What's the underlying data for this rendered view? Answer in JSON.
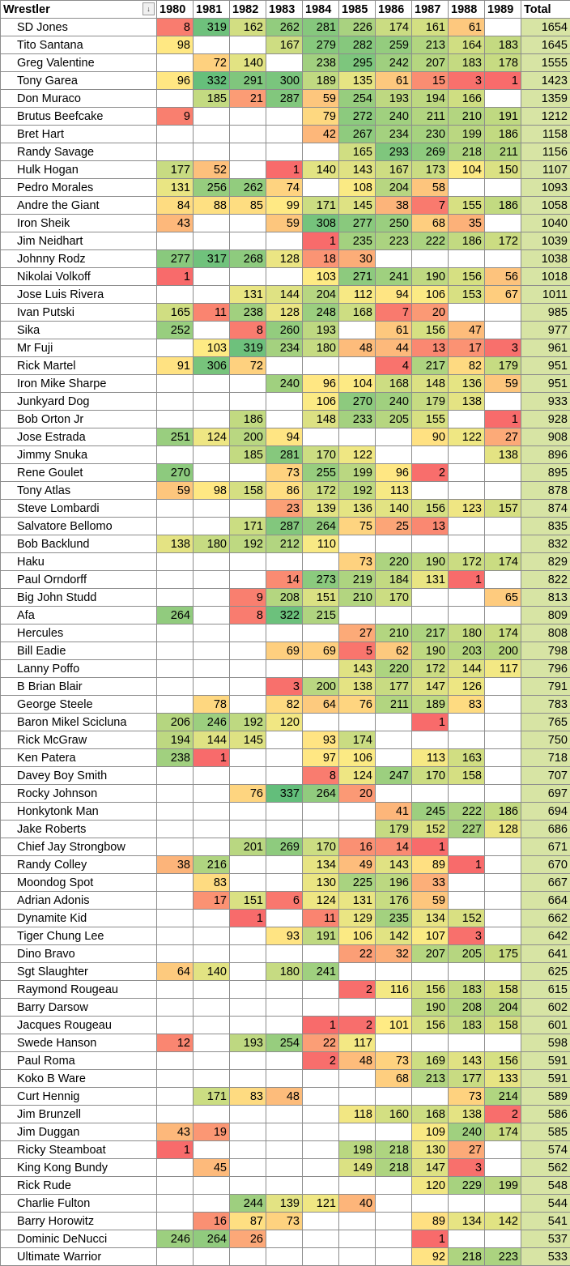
{
  "header": {
    "wrestler": "Wrestler",
    "filter_icon_glyph": "↓",
    "years": [
      "1980",
      "1981",
      "1982",
      "1983",
      "1984",
      "1985",
      "1986",
      "1987",
      "1988",
      "1989"
    ],
    "total": "Total"
  },
  "color_scale": {
    "low": "#f8696b",
    "mid_low": "#fcaa78",
    "mid": "#ffeb84",
    "mid_high": "#cddd82",
    "high": "#63be7b",
    "total_fill": "#d7e4a4"
  },
  "rows": [
    {
      "name": "SD Jones",
      "v": [
        8,
        319,
        162,
        262,
        281,
        226,
        174,
        161,
        61,
        null
      ],
      "total": 1654
    },
    {
      "name": "Tito Santana",
      "v": [
        98,
        null,
        null,
        167,
        279,
        282,
        259,
        213,
        164,
        183
      ],
      "total": 1645
    },
    {
      "name": "Greg Valentine",
      "v": [
        null,
        72,
        140,
        null,
        238,
        295,
        242,
        207,
        183,
        178
      ],
      "total": 1555
    },
    {
      "name": "Tony Garea",
      "v": [
        96,
        332,
        291,
        300,
        189,
        135,
        61,
        15,
        3,
        1
      ],
      "total": 1423
    },
    {
      "name": "Don Muraco",
      "v": [
        null,
        185,
        21,
        287,
        59,
        254,
        193,
        194,
        166,
        null
      ],
      "total": 1359
    },
    {
      "name": "Brutus Beefcake",
      "v": [
        9,
        null,
        null,
        null,
        79,
        272,
        240,
        211,
        210,
        191
      ],
      "total": 1212
    },
    {
      "name": "Bret Hart",
      "v": [
        null,
        null,
        null,
        null,
        42,
        267,
        234,
        230,
        199,
        186
      ],
      "total": 1158
    },
    {
      "name": "Randy Savage",
      "v": [
        null,
        null,
        null,
        null,
        null,
        165,
        293,
        269,
        218,
        211
      ],
      "total": 1156
    },
    {
      "name": "Hulk Hogan",
      "v": [
        177,
        52,
        null,
        1,
        140,
        143,
        167,
        173,
        104,
        150
      ],
      "total": 1107
    },
    {
      "name": "Pedro Morales",
      "v": [
        131,
        256,
        262,
        74,
        null,
        108,
        204,
        58,
        null,
        null
      ],
      "total": 1093
    },
    {
      "name": "Andre the Giant",
      "v": [
        84,
        88,
        85,
        99,
        171,
        145,
        38,
        7,
        155,
        186
      ],
      "total": 1058
    },
    {
      "name": "Iron Sheik",
      "v": [
        43,
        null,
        null,
        59,
        308,
        277,
        250,
        68,
        35,
        null
      ],
      "total": 1040
    },
    {
      "name": "Jim Neidhart",
      "v": [
        null,
        null,
        null,
        null,
        1,
        235,
        223,
        222,
        186,
        172
      ],
      "total": 1039
    },
    {
      "name": "Johnny Rodz",
      "v": [
        277,
        317,
        268,
        128,
        18,
        30,
        null,
        null,
        null,
        null
      ],
      "total": 1038
    },
    {
      "name": "Nikolai Volkoff",
      "v": [
        1,
        null,
        null,
        null,
        103,
        271,
        241,
        190,
        156,
        56
      ],
      "total": 1018
    },
    {
      "name": "Jose Luis Rivera",
      "v": [
        null,
        null,
        131,
        144,
        204,
        112,
        94,
        106,
        153,
        67
      ],
      "total": 1011
    },
    {
      "name": "Ivan Putski",
      "v": [
        165,
        11,
        238,
        128,
        248,
        168,
        7,
        20,
        null,
        null
      ],
      "total": 985
    },
    {
      "name": "Sika",
      "v": [
        252,
        null,
        8,
        260,
        193,
        null,
        61,
        156,
        47,
        null
      ],
      "total": 977
    },
    {
      "name": "Mr Fuji",
      "v": [
        null,
        103,
        319,
        234,
        180,
        48,
        44,
        13,
        17,
        3
      ],
      "total": 961
    },
    {
      "name": "Rick Martel",
      "v": [
        91,
        306,
        72,
        null,
        null,
        null,
        4,
        217,
        82,
        179
      ],
      "total": 951
    },
    {
      "name": "Iron Mike Sharpe",
      "v": [
        null,
        null,
        null,
        240,
        96,
        104,
        168,
        148,
        136,
        59
      ],
      "total": 951
    },
    {
      "name": "Junkyard Dog",
      "v": [
        null,
        null,
        null,
        null,
        106,
        270,
        240,
        179,
        138,
        null
      ],
      "total": 933
    },
    {
      "name": "Bob Orton Jr",
      "v": [
        null,
        null,
        186,
        null,
        148,
        233,
        205,
        155,
        null,
        1
      ],
      "total": 928
    },
    {
      "name": "Jose Estrada",
      "v": [
        251,
        124,
        200,
        94,
        null,
        null,
        null,
        90,
        122,
        27
      ],
      "total": 908
    },
    {
      "name": "Jimmy Snuka",
      "v": [
        null,
        null,
        185,
        281,
        170,
        122,
        null,
        null,
        null,
        138
      ],
      "total": 896
    },
    {
      "name": "Rene Goulet",
      "v": [
        270,
        null,
        null,
        73,
        255,
        199,
        96,
        2,
        null,
        null
      ],
      "total": 895
    },
    {
      "name": "Tony Atlas",
      "v": [
        59,
        98,
        158,
        86,
        172,
        192,
        113,
        null,
        null,
        null
      ],
      "total": 878
    },
    {
      "name": "Steve Lombardi",
      "v": [
        null,
        null,
        null,
        23,
        139,
        136,
        140,
        156,
        123,
        157
      ],
      "total": 874
    },
    {
      "name": "Salvatore Bellomo",
      "v": [
        null,
        null,
        171,
        287,
        264,
        75,
        25,
        13,
        null,
        null
      ],
      "total": 835
    },
    {
      "name": "Bob Backlund",
      "v": [
        138,
        180,
        192,
        212,
        110,
        null,
        null,
        null,
        null,
        null
      ],
      "total": 832
    },
    {
      "name": "Haku",
      "v": [
        null,
        null,
        null,
        null,
        null,
        73,
        220,
        190,
        172,
        174
      ],
      "total": 829
    },
    {
      "name": "Paul Orndorff",
      "v": [
        null,
        null,
        null,
        14,
        273,
        219,
        184,
        131,
        1,
        null
      ],
      "total": 822
    },
    {
      "name": "Big John Studd",
      "v": [
        null,
        null,
        9,
        208,
        151,
        210,
        170,
        null,
        null,
        65
      ],
      "total": 813
    },
    {
      "name": "Afa",
      "v": [
        264,
        null,
        8,
        322,
        215,
        null,
        null,
        null,
        null,
        null
      ],
      "total": 809
    },
    {
      "name": "Hercules",
      "v": [
        null,
        null,
        null,
        null,
        null,
        27,
        210,
        217,
        180,
        174
      ],
      "total": 808
    },
    {
      "name": "Bill Eadie",
      "v": [
        null,
        null,
        null,
        69,
        69,
        5,
        62,
        190,
        203,
        200
      ],
      "total": 798
    },
    {
      "name": "Lanny Poffo",
      "v": [
        null,
        null,
        null,
        null,
        null,
        143,
        220,
        172,
        144,
        117
      ],
      "total": 796
    },
    {
      "name": "B Brian Blair",
      "v": [
        null,
        null,
        null,
        3,
        200,
        138,
        177,
        147,
        126,
        null
      ],
      "total": 791
    },
    {
      "name": "George Steele",
      "v": [
        null,
        78,
        null,
        82,
        64,
        76,
        211,
        189,
        83,
        null
      ],
      "total": 783
    },
    {
      "name": "Baron Mikel Scicluna",
      "v": [
        206,
        246,
        192,
        120,
        null,
        null,
        null,
        1,
        null,
        null
      ],
      "total": 765
    },
    {
      "name": "Rick McGraw",
      "v": [
        194,
        144,
        145,
        null,
        93,
        174,
        null,
        null,
        null,
        null
      ],
      "total": 750
    },
    {
      "name": "Ken Patera",
      "v": [
        238,
        1,
        null,
        null,
        97,
        106,
        null,
        113,
        163,
        null
      ],
      "total": 718
    },
    {
      "name": "Davey Boy Smith",
      "v": [
        null,
        null,
        null,
        null,
        8,
        124,
        247,
        170,
        158,
        null
      ],
      "total": 707
    },
    {
      "name": "Rocky Johnson",
      "v": [
        null,
        null,
        76,
        337,
        264,
        20,
        null,
        null,
        null,
        null
      ],
      "total": 697
    },
    {
      "name": "Honkytonk Man",
      "v": [
        null,
        null,
        null,
        null,
        null,
        null,
        41,
        245,
        222,
        186
      ],
      "total": 694
    },
    {
      "name": "Jake Roberts",
      "v": [
        null,
        null,
        null,
        null,
        null,
        null,
        179,
        152,
        227,
        128
      ],
      "total": 686
    },
    {
      "name": "Chief Jay Strongbow",
      "v": [
        null,
        null,
        201,
        269,
        170,
        16,
        14,
        1,
        null,
        null
      ],
      "total": 671
    },
    {
      "name": "Randy Colley",
      "v": [
        38,
        216,
        null,
        null,
        134,
        49,
        143,
        89,
        1,
        null
      ],
      "total": 670
    },
    {
      "name": "Moondog Spot",
      "v": [
        null,
        83,
        null,
        null,
        130,
        225,
        196,
        33,
        null,
        null
      ],
      "total": 667
    },
    {
      "name": "Adrian Adonis",
      "v": [
        null,
        17,
        151,
        6,
        124,
        131,
        176,
        59,
        null,
        null
      ],
      "total": 664
    },
    {
      "name": "Dynamite Kid",
      "v": [
        null,
        null,
        1,
        null,
        11,
        129,
        235,
        134,
        152,
        null
      ],
      "total": 662
    },
    {
      "name": "Tiger Chung Lee",
      "v": [
        null,
        null,
        null,
        93,
        191,
        106,
        142,
        107,
        3,
        null
      ],
      "total": 642
    },
    {
      "name": "Dino Bravo",
      "v": [
        null,
        null,
        null,
        null,
        null,
        22,
        32,
        207,
        205,
        175
      ],
      "total": 641
    },
    {
      "name": "Sgt Slaughter",
      "v": [
        64,
        140,
        null,
        180,
        241,
        null,
        null,
        null,
        null,
        null
      ],
      "total": 625
    },
    {
      "name": "Raymond Rougeau",
      "v": [
        null,
        null,
        null,
        null,
        null,
        2,
        116,
        156,
        183,
        158
      ],
      "total": 615
    },
    {
      "name": "Barry Darsow",
      "v": [
        null,
        null,
        null,
        null,
        null,
        null,
        null,
        190,
        208,
        204
      ],
      "total": 602
    },
    {
      "name": "Jacques Rougeau",
      "v": [
        null,
        null,
        null,
        null,
        1,
        2,
        101,
        156,
        183,
        158
      ],
      "total": 601
    },
    {
      "name": "Swede Hanson",
      "v": [
        12,
        null,
        193,
        254,
        22,
        117,
        null,
        null,
        null,
        null
      ],
      "total": 598
    },
    {
      "name": "Paul Roma",
      "v": [
        null,
        null,
        null,
        null,
        2,
        48,
        73,
        169,
        143,
        156
      ],
      "total": 591
    },
    {
      "name": "Koko B Ware",
      "v": [
        null,
        null,
        null,
        null,
        null,
        null,
        68,
        213,
        177,
        133
      ],
      "total": 591
    },
    {
      "name": "Curt Hennig",
      "v": [
        null,
        171,
        83,
        48,
        null,
        null,
        null,
        null,
        73,
        214
      ],
      "total": 589
    },
    {
      "name": "Jim Brunzell",
      "v": [
        null,
        null,
        null,
        null,
        null,
        118,
        160,
        168,
        138,
        2
      ],
      "total": 586
    },
    {
      "name": "Jim Duggan",
      "v": [
        43,
        19,
        null,
        null,
        null,
        null,
        null,
        109,
        240,
        174
      ],
      "total": 585
    },
    {
      "name": "Ricky Steamboat",
      "v": [
        1,
        null,
        null,
        null,
        null,
        198,
        218,
        130,
        27,
        null
      ],
      "total": 574
    },
    {
      "name": "King Kong Bundy",
      "v": [
        null,
        45,
        null,
        null,
        null,
        149,
        218,
        147,
        3,
        null
      ],
      "total": 562
    },
    {
      "name": "Rick Rude",
      "v": [
        null,
        null,
        null,
        null,
        null,
        null,
        null,
        120,
        229,
        199
      ],
      "total": 548
    },
    {
      "name": "Charlie Fulton",
      "v": [
        null,
        null,
        244,
        139,
        121,
        40,
        null,
        null,
        null,
        null
      ],
      "total": 544
    },
    {
      "name": "Barry Horowitz",
      "v": [
        null,
        16,
        87,
        73,
        null,
        null,
        null,
        89,
        134,
        142
      ],
      "total": 541
    },
    {
      "name": "Dominic DeNucci",
      "v": [
        246,
        264,
        26,
        null,
        null,
        null,
        null,
        1,
        null,
        null
      ],
      "total": 537
    },
    {
      "name": "Ultimate Warrior",
      "v": [
        null,
        null,
        null,
        null,
        null,
        null,
        null,
        92,
        218,
        223
      ],
      "total": 533
    }
  ]
}
